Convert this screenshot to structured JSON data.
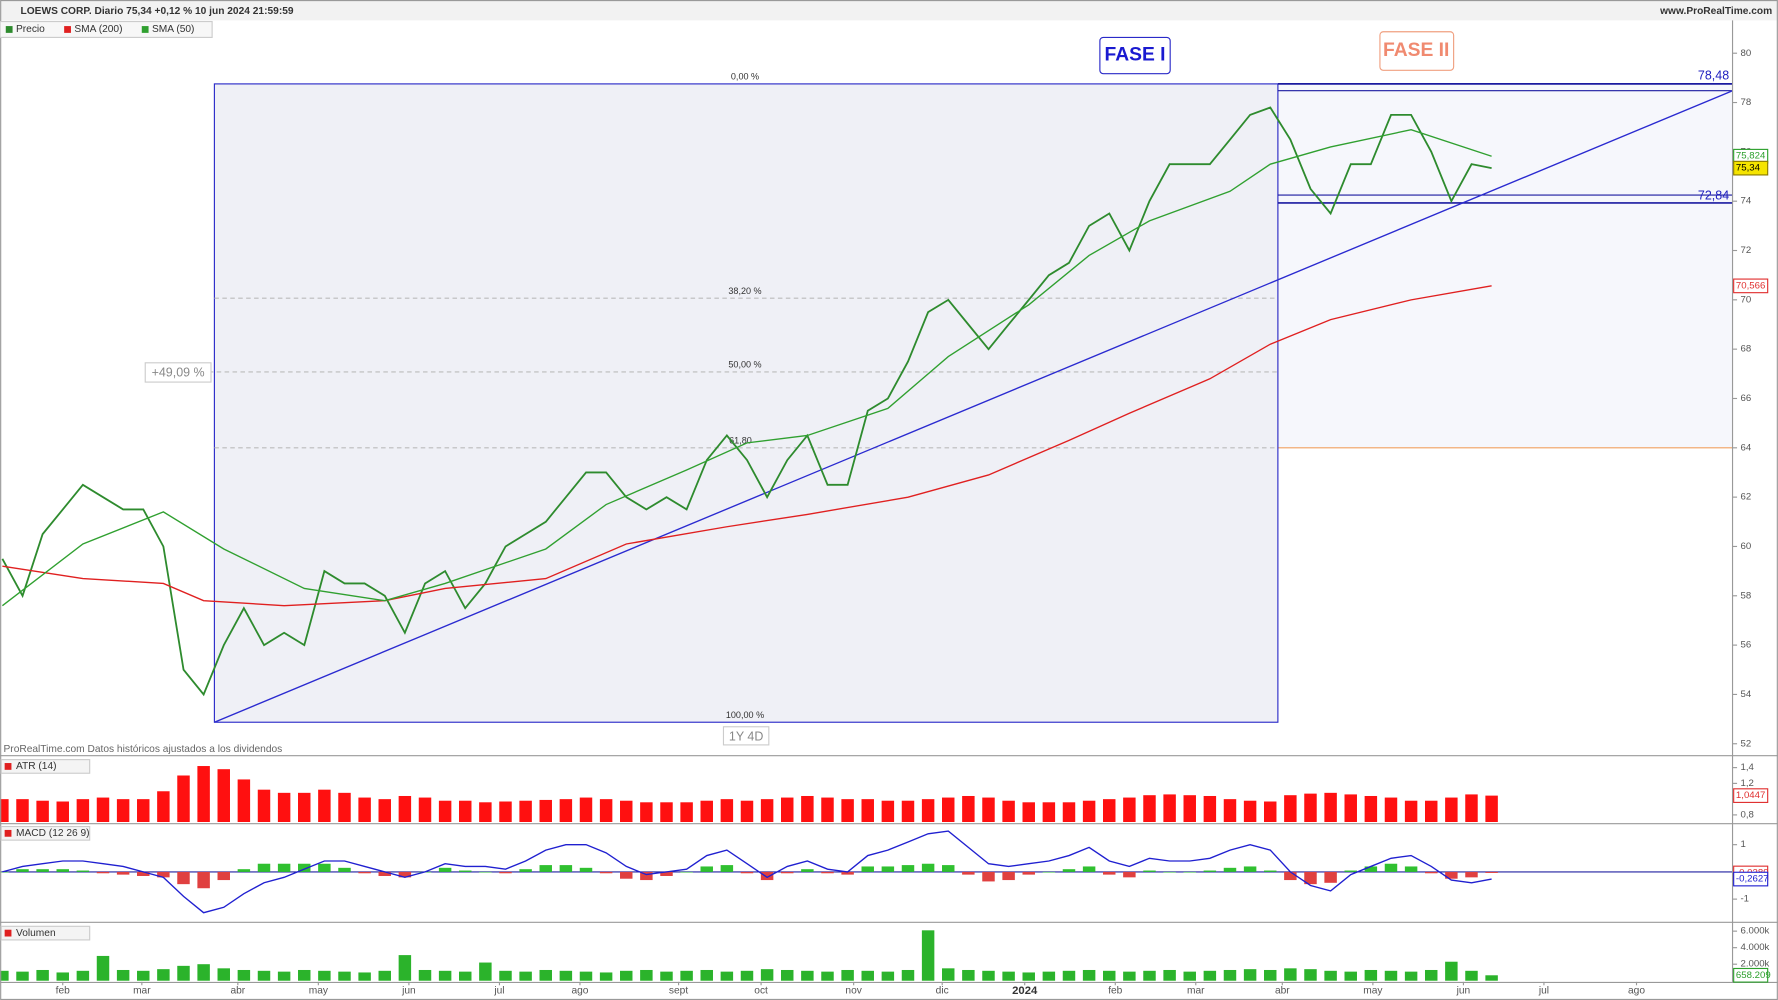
{
  "chart_data": [
    {
      "type": "line",
      "title": "LOEWS CORP. Diario 75,34 +0,12 % 10 jun 2024 21:59:59",
      "source": "www.ProRealTime.com",
      "note": "ProRealTime.com Datos históricos ajustados a los dividendos",
      "xlim": [
        0,
        86
      ],
      "xticks": [
        {
          "value": 3.0,
          "label": "feb"
        },
        {
          "value": 6.93,
          "label": "mar"
        },
        {
          "value": 11.7,
          "label": "abr"
        },
        {
          "value": 15.7,
          "label": "may"
        },
        {
          "value": 20.2,
          "label": "jun"
        },
        {
          "value": 24.7,
          "label": "jul"
        },
        {
          "value": 28.7,
          "label": "ago"
        },
        {
          "value": 33.6,
          "label": "sept"
        },
        {
          "value": 37.7,
          "label": "oct"
        },
        {
          "value": 42.3,
          "label": "nov"
        },
        {
          "value": 46.7,
          "label": "dic"
        },
        {
          "value": 50.8,
          "label": "2024"
        },
        {
          "value": 55.3,
          "label": "feb"
        },
        {
          "value": 59.3,
          "label": "mar"
        },
        {
          "value": 63.6,
          "label": "abr"
        },
        {
          "value": 68.1,
          "label": "may"
        },
        {
          "value": 72.6,
          "label": "jun"
        },
        {
          "value": 76.6,
          "label": "jul"
        },
        {
          "value": 81.2,
          "label": "ago"
        }
      ],
      "ylim": [
        51.54,
        81.33
      ],
      "yticks": [
        52,
        54,
        56,
        58,
        60,
        62,
        64,
        66,
        68,
        70,
        72,
        74,
        76,
        78,
        80
      ],
      "series": [
        {
          "name": "Precio",
          "color": "#2e8b2e",
          "values": [
            59.5,
            58.0,
            60.5,
            61.5,
            62.5,
            62.0,
            61.5,
            61.5,
            60.0,
            55.0,
            54.0,
            56.0,
            57.5,
            56.0,
            56.5,
            56.0,
            59.0,
            58.5,
            58.5,
            58.0,
            56.5,
            58.5,
            59.0,
            57.5,
            58.5,
            60.0,
            60.5,
            61.0,
            62.0,
            63.0,
            63.0,
            62.0,
            61.5,
            62.0,
            61.5,
            63.5,
            64.5,
            63.5,
            62.0,
            63.5,
            64.5,
            62.5,
            62.5,
            65.5,
            66.0,
            67.5,
            69.5,
            70.0,
            69.0,
            68.0,
            69.0,
            70.0,
            71.0,
            71.5,
            73.0,
            73.5,
            72.0,
            74.0,
            75.5,
            75.5,
            75.5,
            76.5,
            77.5,
            77.8,
            76.5,
            74.5,
            73.5,
            75.5,
            75.5,
            77.5,
            77.5,
            76.0,
            74.0,
            75.5,
            75.34
          ]
        },
        {
          "name": "SMA (200)",
          "color": "#e02020",
          "x": [
            0,
            4,
            8,
            10,
            14,
            19,
            22,
            27,
            31,
            36,
            40,
            45,
            49,
            53,
            56,
            60,
            63,
            66,
            70,
            74
          ],
          "values": [
            59.2,
            58.7,
            58.5,
            57.8,
            57.6,
            57.8,
            58.3,
            58.7,
            60.1,
            60.8,
            61.3,
            62.0,
            62.9,
            64.3,
            65.4,
            66.8,
            68.2,
            69.2,
            70.0,
            70.566
          ]
        },
        {
          "name": "SMA (50)",
          "color": "#30a030",
          "x": [
            0,
            4,
            8,
            11,
            15,
            19,
            22,
            27,
            30,
            34,
            37,
            40,
            44,
            47,
            51,
            54,
            57,
            61,
            63,
            66,
            70,
            74
          ],
          "values": [
            57.6,
            60.1,
            61.4,
            59.9,
            58.3,
            57.8,
            58.5,
            59.9,
            61.7,
            63.1,
            64.2,
            64.5,
            65.6,
            67.7,
            69.8,
            71.8,
            73.2,
            74.4,
            75.5,
            76.2,
            76.9,
            75.824
          ]
        }
      ],
      "tags": [
        {
          "value": 75.824,
          "label": "75,824",
          "color": "#2ca02c"
        },
        {
          "value": 75.34,
          "label": "75,34",
          "color": "#8a7a00",
          "fill": "#f5e400"
        },
        {
          "value": 70.566,
          "label": "70,566",
          "color": "#e03030"
        }
      ],
      "annotations": {
        "phase_1": "FASE I",
        "phase_2": "FASE II",
        "fib_0": "0,00 %",
        "fib_382": "38,20 %",
        "fib_50": "50,00 %",
        "fib_618": "61,80",
        "fib_100": "100,00 %",
        "gain": "+49,09 %",
        "duration": "1Y 4D",
        "resistance": "78,48",
        "support": "72,84"
      }
    },
    {
      "type": "bar",
      "title": "ATR (14)",
      "color": "#ff1010",
      "ylim": [
        0.71,
        1.53
      ],
      "yticks": [
        {
          "value": 1.4,
          "label": "1,4"
        },
        {
          "value": 1.2,
          "label": "1,2"
        },
        1,
        {
          "value": 0.8,
          "label": "0,8"
        }
      ],
      "values": [
        1.0,
        1.0,
        0.98,
        0.97,
        1.0,
        1.02,
        1.0,
        1.0,
        1.1,
        1.3,
        1.42,
        1.38,
        1.25,
        1.12,
        1.08,
        1.08,
        1.12,
        1.08,
        1.02,
        1.0,
        1.04,
        1.02,
        0.98,
        0.98,
        0.96,
        0.97,
        0.98,
        0.99,
        1.0,
        1.02,
        1.0,
        0.98,
        0.96,
        0.96,
        0.96,
        0.98,
        1.0,
        0.98,
        1.0,
        1.02,
        1.04,
        1.02,
        1.0,
        1.0,
        0.98,
        0.98,
        1.0,
        1.02,
        1.04,
        1.02,
        0.98,
        0.96,
        0.96,
        0.96,
        0.98,
        1.0,
        1.02,
        1.05,
        1.06,
        1.05,
        1.04,
        1.0,
        0.98,
        0.97,
        1.05,
        1.07,
        1.08,
        1.06,
        1.04,
        1.02,
        0.98,
        0.98,
        1.02,
        1.06,
        1.0447
      ],
      "tags": [
        {
          "value": 1.0447,
          "label": "1,0447",
          "color": "#e03030"
        }
      ]
    },
    {
      "type": "combo",
      "title": "MACD (12 26 9)",
      "ylim": [
        -1.79,
        1.75
      ],
      "yticks": [
        1,
        -1
      ],
      "series": [
        {
          "style": "bar",
          "color": "#30c030",
          "negative_color": "#e04040",
          "values": [
            0.0,
            0.1,
            0.1,
            0.1,
            0.05,
            -0.05,
            -0.1,
            -0.15,
            -0.2,
            -0.45,
            -0.6,
            -0.3,
            0.1,
            0.3,
            0.3,
            0.3,
            0.3,
            0.15,
            -0.05,
            -0.15,
            -0.2,
            0.0,
            0.15,
            0.05,
            0.0,
            -0.05,
            0.1,
            0.25,
            0.25,
            0.15,
            -0.05,
            -0.25,
            -0.3,
            -0.15,
            0.0,
            0.2,
            0.25,
            -0.05,
            -0.3,
            -0.05,
            0.1,
            -0.05,
            -0.1,
            0.2,
            0.2,
            0.25,
            0.3,
            0.25,
            -0.1,
            -0.35,
            -0.3,
            -0.1,
            0.0,
            0.1,
            0.2,
            -0.1,
            -0.2,
            0.05,
            0.0,
            0.0,
            0.05,
            0.15,
            0.2,
            0.05,
            -0.3,
            -0.45,
            -0.4,
            0.05,
            0.2,
            0.3,
            0.2,
            -0.05,
            -0.25,
            -0.2,
            -0.0389
          ]
        },
        {
          "style": "line",
          "color": "#2020d0",
          "values": [
            0.0,
            0.2,
            0.3,
            0.4,
            0.4,
            0.3,
            0.2,
            0.0,
            -0.2,
            -0.9,
            -1.5,
            -1.3,
            -0.8,
            -0.4,
            -0.2,
            0.1,
            0.4,
            0.4,
            0.2,
            0.0,
            -0.2,
            0.0,
            0.3,
            0.2,
            0.2,
            0.1,
            0.4,
            0.8,
            1.0,
            1.0,
            0.7,
            0.2,
            -0.1,
            0.0,
            0.1,
            0.6,
            0.8,
            0.3,
            -0.2,
            0.2,
            0.4,
            0.1,
            0.0,
            0.6,
            0.8,
            1.1,
            1.4,
            1.5,
            0.9,
            0.3,
            0.2,
            0.3,
            0.4,
            0.6,
            0.9,
            0.4,
            0.2,
            0.5,
            0.4,
            0.4,
            0.5,
            0.8,
            1.0,
            0.8,
            0.0,
            -0.5,
            -0.7,
            -0.1,
            0.2,
            0.5,
            0.6,
            0.2,
            -0.3,
            -0.4,
            -0.2627
          ]
        }
      ],
      "tags": [
        {
          "value": -0.0389,
          "label": "-0,0389",
          "color": "#e03030"
        },
        {
          "value": -0.2627,
          "label": "-0,2627",
          "color": "#2020d0"
        }
      ]
    },
    {
      "type": "bar",
      "title": "Volumen",
      "color": "#2bb32b",
      "ylim": [
        0,
        6860000
      ],
      "yticks": [
        {
          "value": 6000000,
          "label": "6.000k"
        },
        {
          "value": 4000000,
          "label": "4.000k"
        },
        {
          "value": 2000000,
          "label": "2.000k"
        }
      ],
      "values": [
        1200000,
        1100000,
        1300000,
        1000000,
        1200000,
        3000000,
        1300000,
        1200000,
        1400000,
        1800000,
        2000000,
        1500000,
        1300000,
        1200000,
        1100000,
        1300000,
        1200000,
        1100000,
        1000000,
        1200000,
        3100000,
        1300000,
        1200000,
        1100000,
        2200000,
        1200000,
        1100000,
        1300000,
        1200000,
        1100000,
        1000000,
        1200000,
        1300000,
        1100000,
        1200000,
        1300000,
        1100000,
        1200000,
        1400000,
        1300000,
        1200000,
        1100000,
        1300000,
        1200000,
        1100000,
        1300000,
        6100000,
        1500000,
        1300000,
        1200000,
        1100000,
        1000000,
        1100000,
        1200000,
        1300000,
        1200000,
        1100000,
        1200000,
        1300000,
        1100000,
        1200000,
        1300000,
        1400000,
        1300000,
        1500000,
        1400000,
        1200000,
        1100000,
        1300000,
        1200000,
        1100000,
        1300000,
        2300000,
        1200000,
        658209
      ],
      "tags": [
        {
          "value": 658209,
          "label": "658.209",
          "color": "#2ca02c"
        }
      ]
    }
  ]
}
